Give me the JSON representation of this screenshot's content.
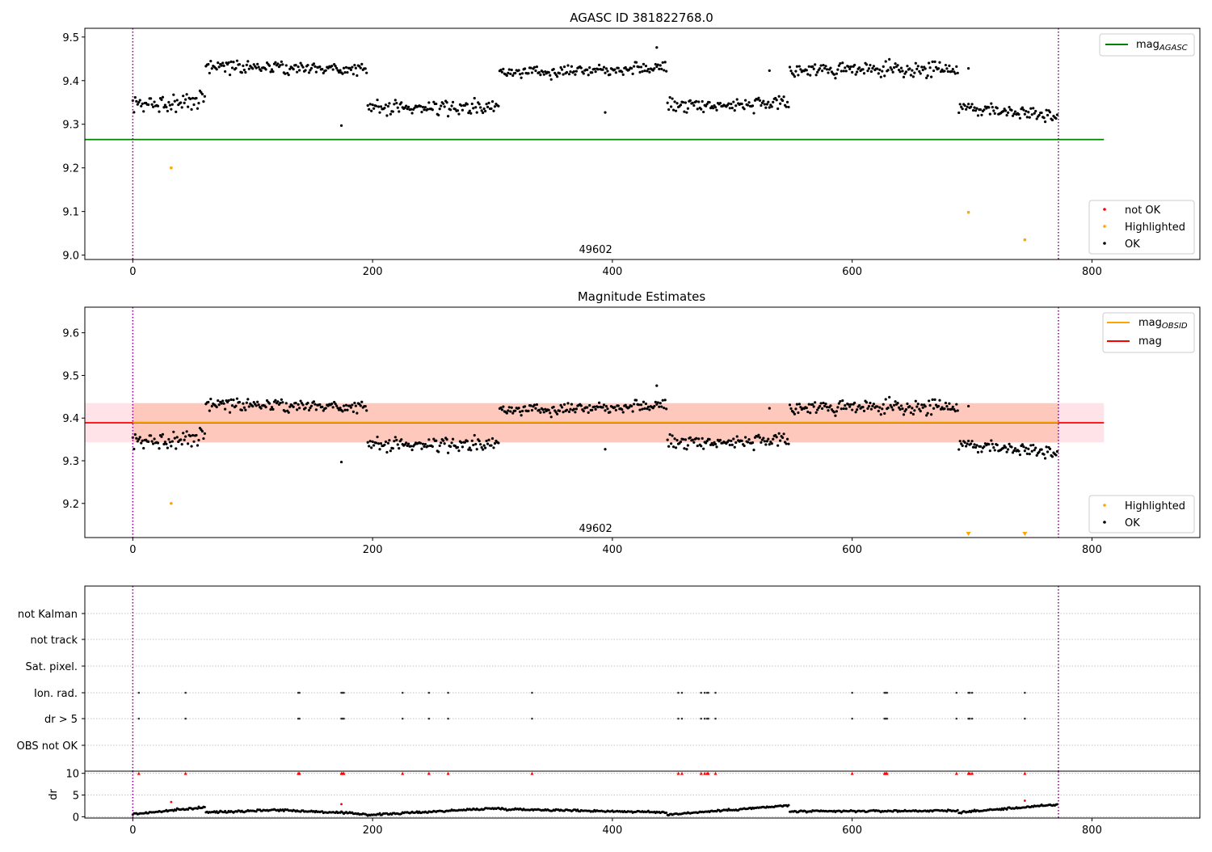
{
  "chart_data": [
    {
      "type": "scatter",
      "title": "AGASC ID 381822768.0",
      "xlim": [
        -40,
        890
      ],
      "ylim": [
        8.99,
        9.52
      ],
      "xticks": [
        0,
        200,
        400,
        600,
        800
      ],
      "yticks": [
        9.0,
        9.1,
        9.2,
        9.3,
        9.4,
        9.5
      ],
      "vlines": [
        0,
        772
      ],
      "hline": {
        "name": "mag_AGASC",
        "y": 9.265,
        "x": [
          -40,
          810
        ],
        "color": "#008000"
      },
      "obsid_label": {
        "text": "49602",
        "x": 386,
        "y": 9.005
      },
      "segment_boundaries": [
        0,
        61,
        196,
        306,
        446,
        548,
        689,
        772
      ],
      "segments": [
        {
          "x": [
            0,
            61
          ],
          "mean": 9.35,
          "spread": 0.014,
          "slope": 0.018
        },
        {
          "x": [
            61,
            196
          ],
          "mean": 9.43,
          "spread": 0.01,
          "slope": -0.008
        },
        {
          "x": [
            196,
            306
          ],
          "mean": 9.338,
          "spread": 0.011,
          "slope": 0.0
        },
        {
          "x": [
            306,
            446
          ],
          "mean": 9.425,
          "spread": 0.01,
          "slope": 0.012
        },
        {
          "x": [
            446,
            548
          ],
          "mean": 9.345,
          "spread": 0.011,
          "slope": 0.0
        },
        {
          "x": [
            548,
            689
          ],
          "mean": 9.425,
          "spread": 0.011,
          "slope": 0.0
        },
        {
          "x": [
            689,
            772
          ],
          "mean": 9.33,
          "spread": 0.01,
          "slope": -0.02
        }
      ],
      "outliers_ok": [
        [
          174,
          9.297
        ],
        [
          394,
          9.327
        ],
        [
          437,
          9.476
        ],
        [
          531,
          9.423
        ],
        [
          697,
          9.428
        ]
      ],
      "highlighted": [
        [
          32,
          9.2
        ],
        [
          697,
          9.098
        ],
        [
          744,
          9.035
        ]
      ],
      "legend_lines": [
        {
          "label": "mag",
          "sub": "AGASC",
          "color": "#008000"
        }
      ],
      "legend_markers": [
        {
          "label": "not OK",
          "color": "#ff0000"
        },
        {
          "label": "Highlighted",
          "color": "#ffa500"
        },
        {
          "label": "OK",
          "color": "#000000"
        }
      ]
    },
    {
      "type": "scatter",
      "title": "Magnitude Estimates",
      "xlim": [
        -40,
        890
      ],
      "ylim": [
        9.12,
        9.66
      ],
      "xticks": [
        0,
        200,
        400,
        600,
        800
      ],
      "yticks": [
        9.2,
        9.3,
        9.4,
        9.5,
        9.6
      ],
      "vlines": [
        0,
        772
      ],
      "bands": [
        {
          "y": [
            9.343,
            9.435
          ],
          "x": [
            -40,
            810
          ],
          "color": "#ffc0cb",
          "opacity": 0.45
        },
        {
          "y": [
            9.343,
            9.435
          ],
          "x": [
            0,
            772
          ],
          "color": "#ffa07a",
          "opacity": 0.4
        }
      ],
      "hlines": [
        {
          "name": "mag",
          "y": 9.389,
          "x": [
            -40,
            810
          ],
          "color": "#ff0000"
        },
        {
          "name": "mag_OBSID",
          "y": 9.39,
          "x": [
            0,
            772
          ],
          "color": "#ffa500"
        }
      ],
      "obsid_label": {
        "text": "49602",
        "x": 386,
        "y": 9.133
      },
      "off_scale_low": [
        697,
        744
      ],
      "highlighted": [
        [
          32,
          9.2
        ]
      ],
      "legend_lines": [
        {
          "label": "mag",
          "sub": "OBSID",
          "color": "#ffa500"
        },
        {
          "label": "mag",
          "sub": "",
          "color": "#ff0000"
        }
      ],
      "legend_markers": [
        {
          "label": "Highlighted",
          "color": "#ffa500"
        },
        {
          "label": "OK",
          "color": "#000000"
        }
      ]
    },
    {
      "type": "scatter",
      "xlim": [
        -40,
        890
      ],
      "xticks": [
        0,
        200,
        400,
        600,
        800
      ],
      "vlines": [
        0,
        772
      ],
      "flag_rows": [
        "not Kalman",
        "not track",
        "Sat. pixel.",
        "Ion. rad.",
        "dr > 5",
        "OBS not OK"
      ],
      "flag_points": [
        5,
        44,
        138,
        139,
        174,
        175,
        176,
        225,
        247,
        263,
        333,
        455,
        458,
        474,
        477,
        479,
        480,
        486,
        600,
        627,
        628,
        629,
        687,
        697,
        698,
        700,
        744
      ],
      "flagged_rows": [
        "Ion. rad.",
        "dr > 5"
      ]
    },
    {
      "type": "scatter",
      "ylabel": "dr",
      "xlim": [
        -40,
        890
      ],
      "ylim": [
        -0.3,
        10.5
      ],
      "xticks": [
        0,
        200,
        400,
        600,
        800
      ],
      "yticks": [
        0,
        5,
        10
      ],
      "vlines": [
        0,
        772
      ],
      "dr_segments": [
        {
          "x": [
            0,
            61
          ],
          "start": 0.6,
          "end": 2.2
        },
        {
          "x": [
            61,
            120
          ],
          "start": 1.0,
          "end": 1.6
        },
        {
          "x": [
            120,
            196
          ],
          "start": 1.6,
          "end": 0.6
        },
        {
          "x": [
            196,
            306
          ],
          "start": 0.4,
          "end": 2.0
        },
        {
          "x": [
            306,
            446
          ],
          "start": 1.8,
          "end": 1.0
        },
        {
          "x": [
            446,
            548
          ],
          "start": 0.5,
          "end": 2.6
        },
        {
          "x": [
            548,
            689
          ],
          "start": 1.2,
          "end": 1.4
        },
        {
          "x": [
            689,
            772
          ],
          "start": 1.0,
          "end": 2.8
        }
      ],
      "dr_red_points": [
        [
          32,
          3.4
        ],
        [
          174,
          2.9
        ],
        [
          744,
          3.7
        ]
      ],
      "dr_capped_points": [
        5,
        44,
        138,
        139,
        174,
        175,
        176,
        225,
        247,
        263,
        333,
        455,
        458,
        474,
        477,
        479,
        480,
        486,
        600,
        627,
        628,
        629,
        687,
        697,
        698,
        700,
        744
      ]
    }
  ]
}
